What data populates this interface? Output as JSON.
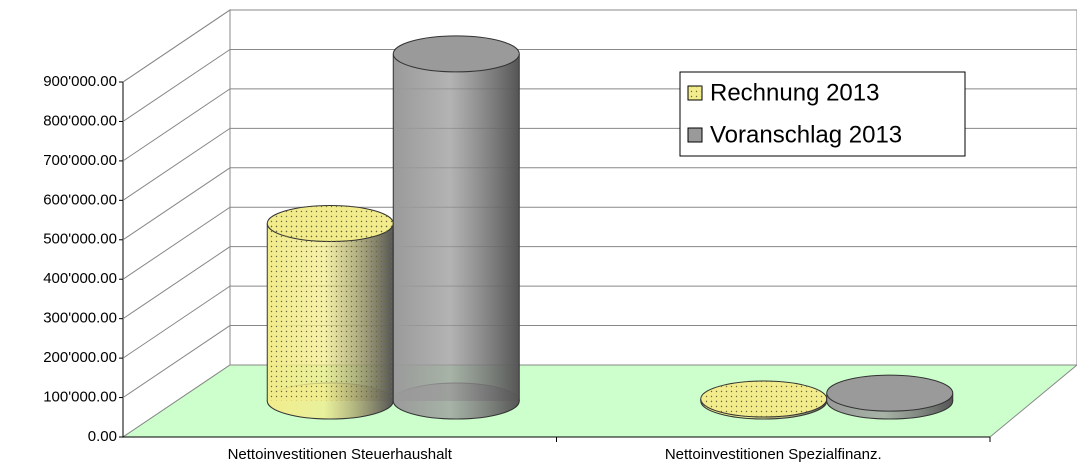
{
  "chart_data": {
    "type": "bar3d",
    "categories": [
      "Nettoinvestitionen Steuerhaushalt",
      "Nettoinvestitionen Spezialfinanz."
    ],
    "series": [
      {
        "name": "Rechnung 2013",
        "color": "#f2ec8c",
        "values": [
          450000,
          5000
        ]
      },
      {
        "name": "Voranschlag 2013",
        "color": "#9a9a9a",
        "values": [
          880000,
          20000
        ]
      }
    ],
    "ylim": [
      0,
      900000
    ],
    "yticks": [
      {
        "value": 0,
        "label": "0.00"
      },
      {
        "value": 100000,
        "label": "100'000.00"
      },
      {
        "value": 200000,
        "label": "200'000.00"
      },
      {
        "value": 300000,
        "label": "300'000.00"
      },
      {
        "value": 400000,
        "label": "400'000.00"
      },
      {
        "value": 500000,
        "label": "500'000.00"
      },
      {
        "value": 600000,
        "label": "600'000.00"
      },
      {
        "value": 700000,
        "label": "700'000.00"
      },
      {
        "value": 800000,
        "label": "800'000.00"
      },
      {
        "value": 900000,
        "label": "900'000.00"
      }
    ],
    "grid": true,
    "legend": "top-right"
  }
}
